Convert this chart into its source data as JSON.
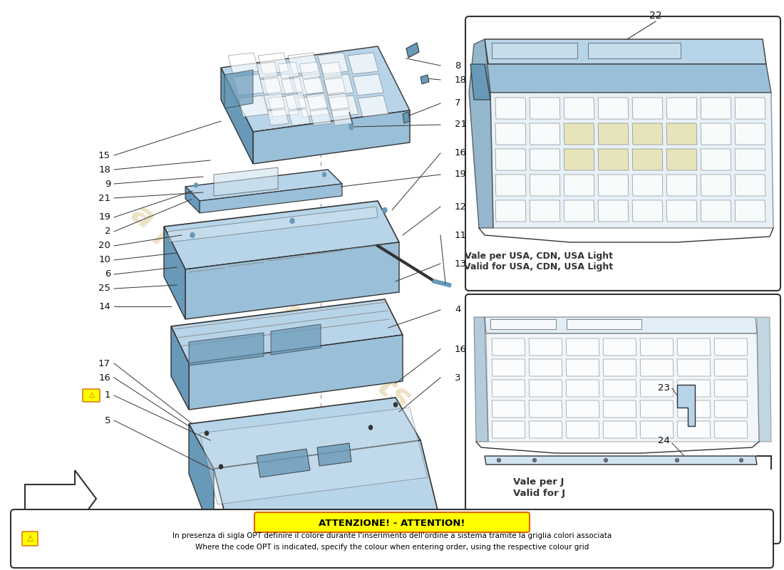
{
  "bg_color": "#ffffff",
  "part_color_blue": "#b8d4e8",
  "part_color_blue2": "#9abfd8",
  "part_color_blue_dark": "#6899b8",
  "part_color_blue_light": "#d0e4f0",
  "part_color_yellow": "#e8e0a8",
  "line_color": "#333333",
  "line_color_light": "#888888",
  "label_color": "#111111",
  "attention_bg": "#ffff00",
  "attention_border": "#dd6600",
  "watermark_color": "#c8a040",
  "watermark_alpha": 0.3,
  "attention_text1": "ATTENZIONE! - ATTENTION!",
  "attention_text2": "In presenza di sigla OPT definire il colore durante l'inserimento dell'ordine a sistema tramite la griglia colori associata",
  "attention_text3": "Where the code OPT is indicated, specify the colour when entering order, using the respective colour grid",
  "right_box1_label1": "Vale per USA, CDN, USA Light",
  "right_box1_label2": "Valid for USA, CDN, USA Light",
  "right_box2_label1": "Vale per J",
  "right_box2_label2": "Valid for J"
}
